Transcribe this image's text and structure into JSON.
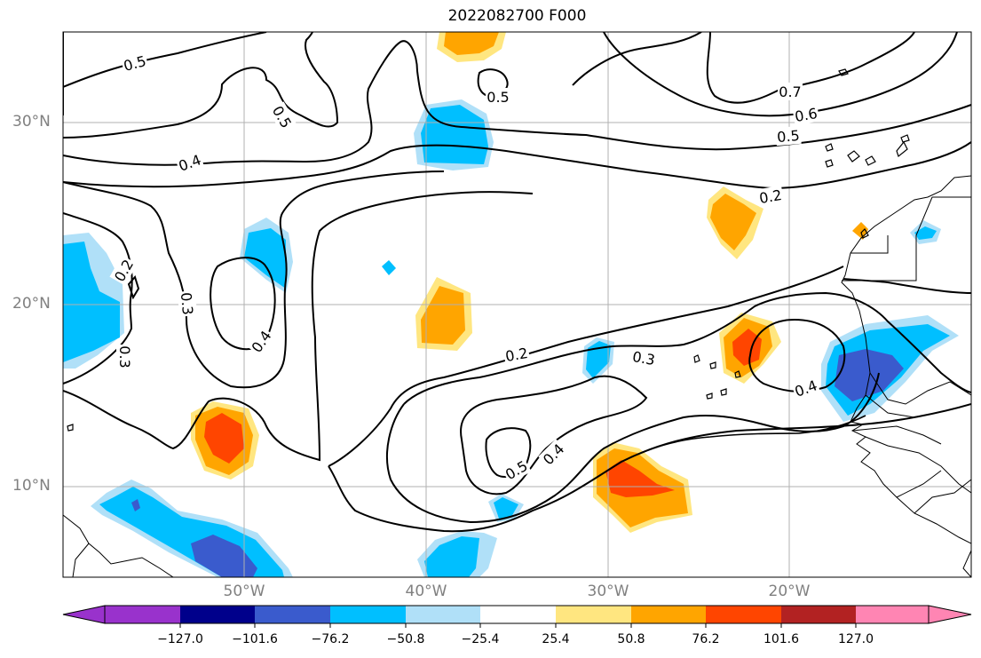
{
  "title": "2022082700 F000",
  "lat_labels": [
    "30°N",
    "20°N",
    "10°N"
  ],
  "lon_labels": [
    "50°W",
    "40°W",
    "30°W",
    "20°W"
  ],
  "contour_labels": [
    "0.5",
    "0.5",
    "0.5",
    "0.7",
    "0.6",
    "0.5",
    "0.4",
    "0.2",
    "0.2",
    "0.3",
    "0.3",
    "0.4",
    "0.2",
    "0.3",
    "0.4",
    "0.5",
    "0.4"
  ],
  "colorbar": {
    "ticks": [
      "−127.0",
      "−101.6",
      "−76.2",
      "−50.8",
      "−25.4",
      "25.4",
      "50.8",
      "76.2",
      "101.6",
      "127.0"
    ],
    "colors": [
      "#9932cc",
      "#00008b",
      "#3a5bcd",
      "#00bfff",
      "#b0e0f8",
      "#ffffff",
      "#ffe680",
      "#ffa500",
      "#ff4500",
      "#b22222",
      "#ff85b3"
    ]
  }
}
